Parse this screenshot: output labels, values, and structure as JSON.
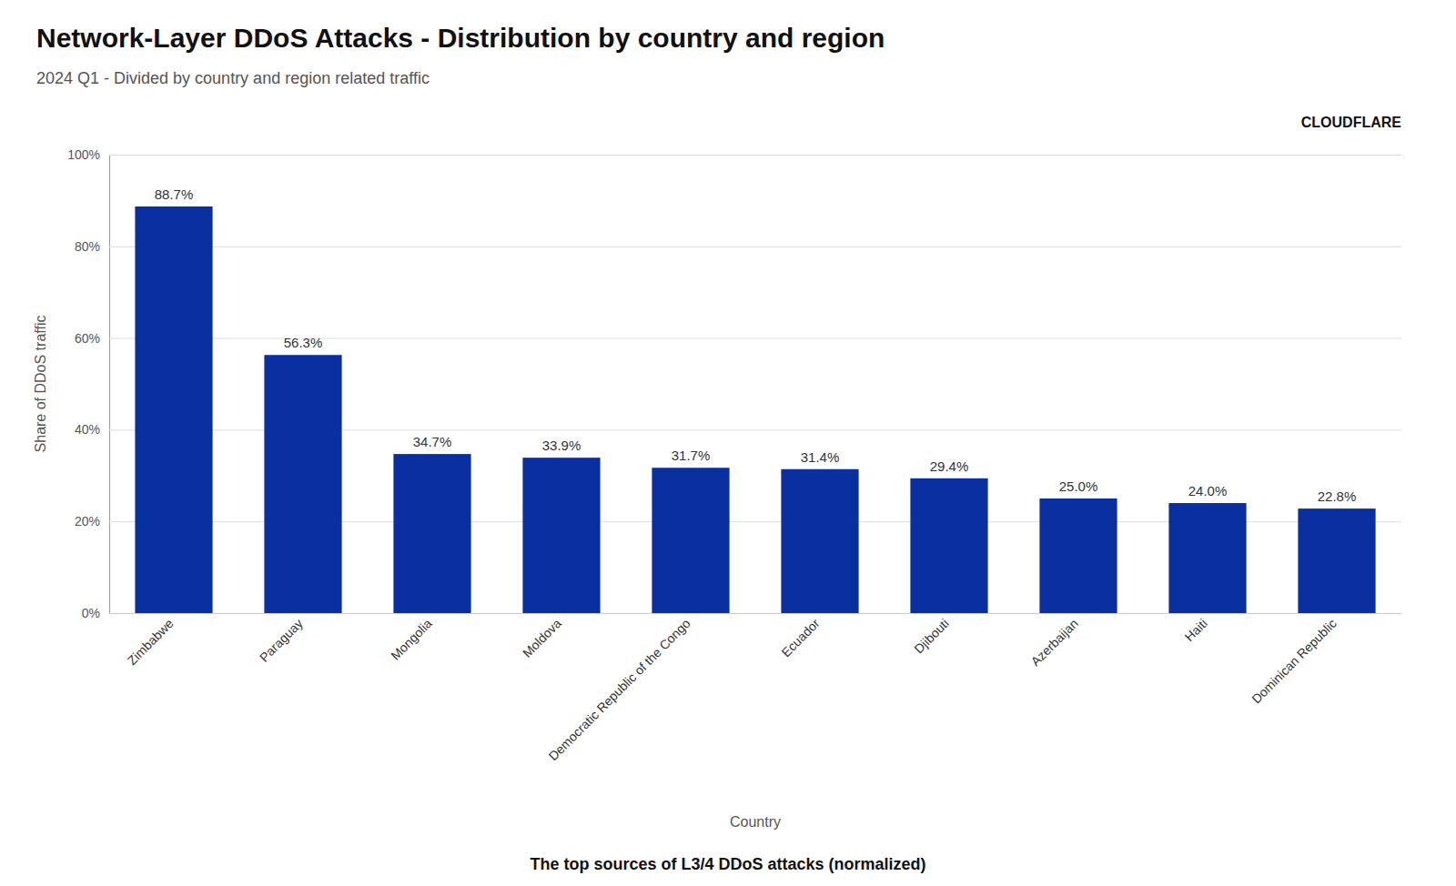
{
  "chart_data": {
    "type": "bar",
    "title": "Network-Layer DDoS Attacks - Distribution by country and region",
    "subtitle": "2024 Q1 - Divided by country and region related traffic",
    "xlabel": "Country",
    "ylabel": "Share of DDoS traffic",
    "caption": "The top sources of L3/4 DDoS attacks (normalized)",
    "annotations": [
      {
        "text": "CLOUDFLARE"
      }
    ],
    "categories": [
      "Zimbabwe",
      "Paraguay",
      "Mongolia",
      "Moldova",
      "Democratic Republic of the Congo",
      "Ecuador",
      "Djibouti",
      "Azerbaijan",
      "Haiti",
      "Dominican Republic"
    ],
    "values": [
      88.7,
      56.3,
      34.7,
      33.9,
      31.7,
      31.4,
      29.4,
      25.0,
      24.0,
      22.8
    ],
    "value_labels": [
      "88.7%",
      "56.3%",
      "34.7%",
      "33.9%",
      "31.7%",
      "31.4%",
      "29.4%",
      "25.0%",
      "24.0%",
      "22.8%"
    ],
    "color": "#0a2fa0",
    "ylim": [
      0,
      100
    ],
    "yticks": [
      {
        "value": 0,
        "label": "0%"
      },
      {
        "value": 20,
        "label": "20%"
      },
      {
        "value": 40,
        "label": "40%"
      },
      {
        "value": 60,
        "label": "60%"
      },
      {
        "value": 80,
        "label": "80%"
      },
      {
        "value": 100,
        "label": "100%"
      }
    ],
    "grid": true,
    "data_labels": true
  }
}
